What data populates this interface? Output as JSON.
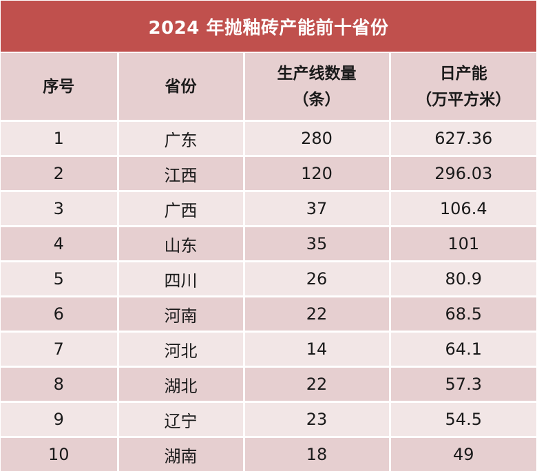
{
  "title": "2024 年抛釉砖产能前十省份",
  "headers": {
    "index": "序号",
    "province": "省份",
    "lines_line1": "生产线数量",
    "lines_line2": "（条）",
    "capacity_line1": "日产能",
    "capacity_line2": "（万平方米）"
  },
  "rows": [
    {
      "index": "1",
      "province": "广东",
      "lines": "280",
      "capacity": "627.36"
    },
    {
      "index": "2",
      "province": "江西",
      "lines": "120",
      "capacity": "296.03"
    },
    {
      "index": "3",
      "province": "广西",
      "lines": "37",
      "capacity": "106.4"
    },
    {
      "index": "4",
      "province": "山东",
      "lines": "35",
      "capacity": "101"
    },
    {
      "index": "5",
      "province": "四川",
      "lines": "26",
      "capacity": "80.9"
    },
    {
      "index": "6",
      "province": "河南",
      "lines": "22",
      "capacity": "68.5"
    },
    {
      "index": "7",
      "province": "河北",
      "lines": "14",
      "capacity": "64.1"
    },
    {
      "index": "8",
      "province": "湖北",
      "lines": "22",
      "capacity": "57.3"
    },
    {
      "index": "9",
      "province": "辽宁",
      "lines": "23",
      "capacity": "54.5"
    },
    {
      "index": "10",
      "province": "湖南",
      "lines": "18",
      "capacity": "49"
    }
  ],
  "colors": {
    "title_bg": "#c0504d",
    "row_dark": "#e6cfd0",
    "row_light": "#f2e6e6"
  }
}
